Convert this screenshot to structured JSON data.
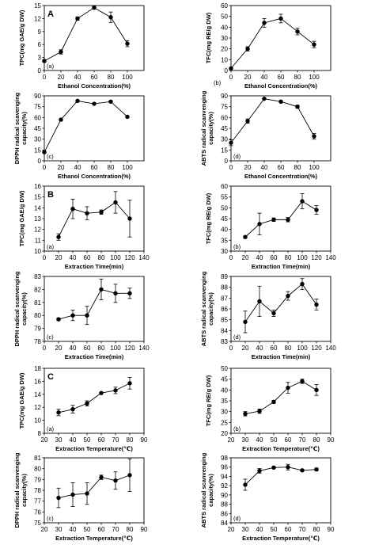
{
  "chart_data": [
    {
      "type": "line",
      "panel_label": "(a)",
      "group_label": "A",
      "xlabel": "Ethanol Concentration(%)",
      "ylabel": "TPC(mg GAE/g DW)",
      "x": [
        0,
        20,
        40,
        60,
        80,
        100
      ],
      "y": [
        2.2,
        4.3,
        12.0,
        14.5,
        12.3,
        6.2
      ],
      "err": [
        0.3,
        0.5,
        0.4,
        0.3,
        1.2,
        0.7
      ],
      "xlim": [
        0,
        120
      ],
      "ylim": [
        0,
        15
      ],
      "xticks": [
        "0",
        "20",
        "40",
        "60",
        "80",
        "100"
      ],
      "yticks": [
        "0",
        "3",
        "6",
        "9",
        "12",
        "15"
      ]
    },
    {
      "type": "line",
      "panel_label": "(b)",
      "xlabel": "Ethanol Concentration(%)",
      "ylabel": "TFC(mg RE/g DW)",
      "x": [
        0,
        20,
        40,
        60,
        80,
        100
      ],
      "y": [
        2,
        20,
        44,
        48,
        36,
        24
      ],
      "err": [
        1,
        2,
        4,
        4,
        3,
        3
      ],
      "xlim": [
        0,
        120
      ],
      "ylim": [
        0,
        60
      ],
      "xticks": [
        "0",
        "20",
        "40",
        "60",
        "80",
        "100"
      ],
      "yticks": [
        "0",
        "10",
        "20",
        "30",
        "40",
        "50",
        "60"
      ]
    },
    {
      "type": "line",
      "panel_label": "(c)",
      "xlabel": "Ethanol Concentration(%)",
      "ylabel": "DPPH radical scavenging capacity(%)",
      "x": [
        0,
        20,
        40,
        60,
        80,
        100
      ],
      "y": [
        12,
        57,
        83,
        79,
        82,
        61
      ],
      "err": [
        1.5,
        1,
        1,
        1,
        1,
        1
      ],
      "xlim": [
        0,
        120
      ],
      "ylim": [
        0,
        90
      ],
      "xticks": [
        "0",
        "20",
        "40",
        "60",
        "80",
        "100"
      ],
      "yticks": [
        "0",
        "15",
        "30",
        "45",
        "60",
        "75",
        "90"
      ]
    },
    {
      "type": "line",
      "panel_label": "(d)",
      "xlabel": "Ethanol Concentration(%)",
      "ylabel": "ABTS radical scanvenging capacity(%)",
      "x": [
        0,
        20,
        40,
        60,
        80,
        100
      ],
      "y": [
        25,
        55,
        86,
        82,
        75,
        34
      ],
      "err": [
        4,
        3,
        1,
        1,
        2,
        4
      ],
      "xlim": [
        0,
        120
      ],
      "ylim": [
        0,
        90
      ],
      "xticks": [
        "0",
        "20",
        "40",
        "60",
        "80",
        "100"
      ],
      "yticks": [
        "0",
        "15",
        "30",
        "45",
        "60",
        "75",
        "90"
      ]
    },
    {
      "type": "line",
      "panel_label": "(a)",
      "group_label": "B",
      "xlabel": "Extraction Time(min)",
      "ylabel": "TPC(mg GAE/g DW)",
      "x": [
        20,
        40,
        60,
        80,
        100,
        120
      ],
      "y": [
        11.3,
        13.9,
        13.5,
        13.6,
        14.5,
        13.0
      ],
      "err": [
        0.3,
        0.9,
        0.6,
        0.2,
        1.0,
        1.7
      ],
      "xlim": [
        0,
        140
      ],
      "ylim": [
        10,
        16
      ],
      "xticks": [
        "0",
        "20",
        "40",
        "60",
        "80",
        "100",
        "120",
        "140"
      ],
      "yticks": [
        "10",
        "11",
        "12",
        "13",
        "14",
        "15",
        "16"
      ]
    },
    {
      "type": "line",
      "panel_label": "(b)",
      "xlabel": "Extraction Time(min)",
      "ylabel": "TFC(mg RE/g DW)",
      "x": [
        20,
        40,
        60,
        80,
        100,
        120
      ],
      "y": [
        36.5,
        42.5,
        44.5,
        44.5,
        53,
        49
      ],
      "err": [
        0.5,
        5,
        0.8,
        1,
        3.5,
        2
      ],
      "xlim": [
        0,
        140
      ],
      "ylim": [
        30,
        60
      ],
      "xticks": [
        "0",
        "20",
        "40",
        "60",
        "80",
        "100",
        "120",
        "140"
      ],
      "yticks": [
        "30",
        "35",
        "40",
        "45",
        "50",
        "55",
        "60"
      ]
    },
    {
      "type": "line",
      "panel_label": "(c)",
      "xlabel": "Extraction Time(min)",
      "ylabel": "DPPH radical scanvenging capacity(%)",
      "x": [
        20,
        40,
        60,
        80,
        100,
        120
      ],
      "y": [
        79.7,
        80.0,
        80.0,
        82.0,
        81.7,
        81.7
      ],
      "err": [
        0.1,
        0.4,
        0.7,
        0.8,
        0.7,
        0.4
      ],
      "xlim": [
        0,
        140
      ],
      "ylim": [
        78,
        83
      ],
      "xticks": [
        "0",
        "20",
        "40",
        "60",
        "80",
        "100",
        "120",
        "140"
      ],
      "yticks": [
        "78",
        "79",
        "80",
        "81",
        "82",
        "83"
      ]
    },
    {
      "type": "line",
      "panel_label": "(d)",
      "xlabel": "Extraction Time(min)",
      "ylabel": "ABTS radical scanvenging capacity(%)",
      "x": [
        20,
        40,
        60,
        80,
        100,
        120
      ],
      "y": [
        84.8,
        86.7,
        85.6,
        87.2,
        88.3,
        86.4
      ],
      "err": [
        1.0,
        1.4,
        0.3,
        0.4,
        0.5,
        0.5
      ],
      "xlim": [
        0,
        140
      ],
      "ylim": [
        83,
        89
      ],
      "xticks": [
        "0",
        "20",
        "40",
        "60",
        "80",
        "100",
        "120",
        "140"
      ],
      "yticks": [
        "83",
        "84",
        "85",
        "86",
        "87",
        "88",
        "89"
      ]
    },
    {
      "type": "line",
      "panel_label": "(a)",
      "group_label": "C",
      "xlabel": "Extraction Temperature(℃)",
      "ylabel": "TPC(mg GAE/g DW)",
      "x": [
        30,
        40,
        50,
        60,
        70,
        80
      ],
      "y": [
        11.2,
        11.7,
        12.6,
        14.2,
        14.6,
        15.7
      ],
      "err": [
        0.5,
        0.6,
        0.4,
        0.1,
        0.5,
        0.9
      ],
      "xlim": [
        20,
        90
      ],
      "ylim": [
        8,
        18
      ],
      "xticks": [
        "20",
        "30",
        "40",
        "50",
        "60",
        "70",
        "80",
        "90"
      ],
      "yticks": [
        "8",
        "10",
        "12",
        "14",
        "16",
        "18"
      ]
    },
    {
      "type": "line",
      "panel_label": "(b)",
      "xlabel": "Extraction Temperature(℃)",
      "ylabel": "TFC(mg RE/g DW)",
      "x": [
        30,
        40,
        50,
        60,
        70,
        80
      ],
      "y": [
        29,
        30.2,
        34.5,
        41,
        44,
        40
      ],
      "err": [
        1,
        1,
        0.7,
        2.5,
        1,
        2.5
      ],
      "xlim": [
        20,
        90
      ],
      "ylim": [
        20,
        50
      ],
      "xticks": [
        "20",
        "30",
        "40",
        "50",
        "60",
        "70",
        "80",
        "90"
      ],
      "yticks": [
        "20",
        "25",
        "30",
        "35",
        "40",
        "45",
        "50"
      ]
    },
    {
      "type": "line",
      "panel_label": "(c)",
      "xlabel": "Extraction Temperature(℃)",
      "ylabel": "DPPH radical scanvenging capacity(%)",
      "x": [
        30,
        40,
        50,
        60,
        70,
        80
      ],
      "y": [
        77.3,
        77.6,
        77.7,
        79.2,
        78.9,
        79.4
      ],
      "err": [
        0.9,
        1.1,
        1.0,
        0.2,
        0.8,
        1.5
      ],
      "xlim": [
        20,
        90
      ],
      "ylim": [
        75,
        81
      ],
      "xticks": [
        "20",
        "30",
        "40",
        "50",
        "60",
        "70",
        "80",
        "90"
      ],
      "yticks": [
        "75",
        "76",
        "77",
        "78",
        "79",
        "80",
        "81"
      ]
    },
    {
      "type": "line",
      "panel_label": "(d)",
      "xlabel": "Extraction Temperature(℃)",
      "ylabel": "ABTS radical scanvenging capacity(%)",
      "x": [
        30,
        40,
        50,
        60,
        70,
        80
      ],
      "y": [
        92.2,
        95.2,
        95.9,
        96.0,
        95.3,
        95.5
      ],
      "err": [
        1.2,
        0.5,
        0.2,
        0.6,
        0.2,
        0.3
      ],
      "xlim": [
        20,
        90
      ],
      "ylim": [
        84,
        98
      ],
      "xticks": [
        "20",
        "30",
        "40",
        "50",
        "60",
        "70",
        "80",
        "90"
      ],
      "yticks": [
        "84",
        "86",
        "88",
        "90",
        "92",
        "94",
        "96",
        "98"
      ]
    }
  ],
  "text": {
    "panel_b_first_label": "(b)",
    "ylabel_lines": {
      "dpph1": [
        "DPPH radical scavenging",
        "capacity(%)"
      ],
      "dpph": [
        "DPPH radical scanvenging",
        "capacity(%)"
      ],
      "abts": [
        "ABTS radical scanvenging",
        "capacity(%)"
      ]
    }
  }
}
